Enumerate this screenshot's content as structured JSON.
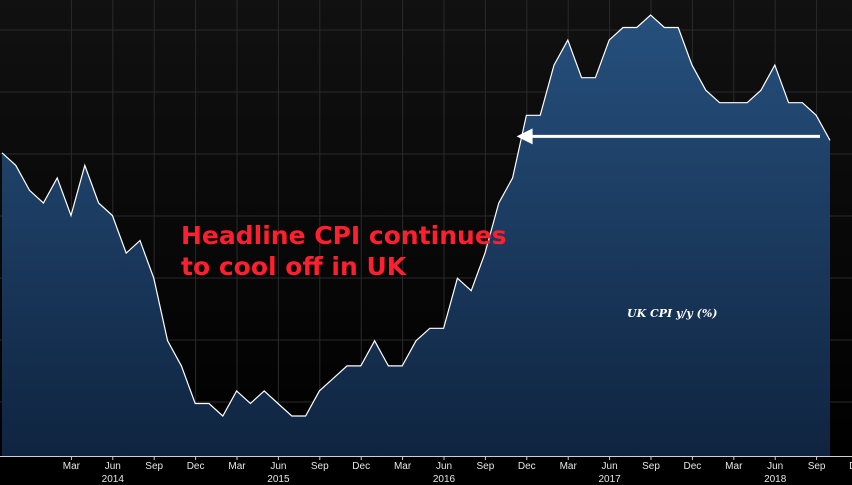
{
  "headline": {
    "line1": "Headline CPI continues",
    "line2": "to cool off in UK"
  },
  "colors": {
    "background": "#000000",
    "plot_top": "#111111",
    "area_fill": "#1b3a5e",
    "series_line": "#ffffff",
    "headline_text": "#ff1f2f",
    "gridline": "#2a2a2a"
  },
  "chart_data": {
    "type": "area",
    "series_name": "UK CPI y/y (%)",
    "x_unit": "month",
    "months": [
      "2013-12",
      "2014-01",
      "2014-02",
      "2014-03",
      "2014-04",
      "2014-05",
      "2014-06",
      "2014-07",
      "2014-08",
      "2014-09",
      "2014-10",
      "2014-11",
      "2014-12",
      "2015-01",
      "2015-02",
      "2015-03",
      "2015-04",
      "2015-05",
      "2015-06",
      "2015-07",
      "2015-08",
      "2015-09",
      "2015-10",
      "2015-11",
      "2015-12",
      "2016-01",
      "2016-02",
      "2016-03",
      "2016-04",
      "2016-05",
      "2016-06",
      "2016-07",
      "2016-08",
      "2016-09",
      "2016-10",
      "2016-11",
      "2016-12",
      "2017-01",
      "2017-02",
      "2017-03",
      "2017-04",
      "2017-05",
      "2017-06",
      "2017-07",
      "2017-08",
      "2017-09",
      "2017-10",
      "2017-11",
      "2017-12",
      "2018-01",
      "2018-02",
      "2018-03",
      "2018-04",
      "2018-05",
      "2018-06",
      "2018-07",
      "2018-08",
      "2018-09",
      "2018-10",
      "2018-11",
      "2018-12"
    ],
    "values": [
      2.0,
      1.9,
      1.7,
      1.6,
      1.8,
      1.5,
      1.9,
      1.6,
      1.5,
      1.2,
      1.3,
      1.0,
      0.5,
      0.3,
      0.0,
      0.0,
      -0.1,
      0.1,
      0.0,
      0.1,
      0.0,
      -0.1,
      -0.1,
      0.1,
      0.2,
      0.3,
      0.3,
      0.5,
      0.3,
      0.3,
      0.5,
      0.6,
      0.6,
      1.0,
      0.9,
      1.2,
      1.6,
      1.8,
      2.3,
      2.3,
      2.7,
      2.9,
      2.6,
      2.6,
      2.9,
      3.0,
      3.0,
      3.1,
      3.0,
      3.0,
      2.7,
      2.5,
      2.4,
      2.4,
      2.4,
      2.5,
      2.7,
      2.4,
      2.4,
      2.3,
      2.1
    ],
    "y_range": [
      -0.5,
      3.5
    ],
    "y_gridlines": [
      0,
      0.5,
      1.0,
      1.5,
      2.0,
      2.5,
      3.0
    ],
    "grid": true,
    "x_ticks": [
      "Mar",
      "Jun",
      "Sep",
      "Dec",
      "Mar",
      "Jun",
      "Sep",
      "Dec",
      "Mar",
      "Jun",
      "Sep",
      "Dec",
      "Mar",
      "Jun",
      "Sep",
      "Dec",
      "Mar",
      "Jun",
      "Sep",
      "Dec"
    ],
    "x_tick_months": [
      "2014-03",
      "2014-06",
      "2014-09",
      "2014-12",
      "2015-03",
      "2015-06",
      "2015-09",
      "2015-12",
      "2016-03",
      "2016-06",
      "2016-09",
      "2016-12",
      "2017-03",
      "2017-06",
      "2017-09",
      "2017-12",
      "2018-03",
      "2018-06",
      "2018-09",
      "2018-12"
    ],
    "year_labels": [
      "2014",
      "2015",
      "2016",
      "2017",
      "2018"
    ],
    "year_label_months": [
      "2014-06",
      "2015-06",
      "2016-06",
      "2017-06",
      "2018-06"
    ],
    "annotation": {
      "type": "arrow",
      "from_month": "2018-12",
      "to_month": "2017-01",
      "level": 2.1
    }
  }
}
